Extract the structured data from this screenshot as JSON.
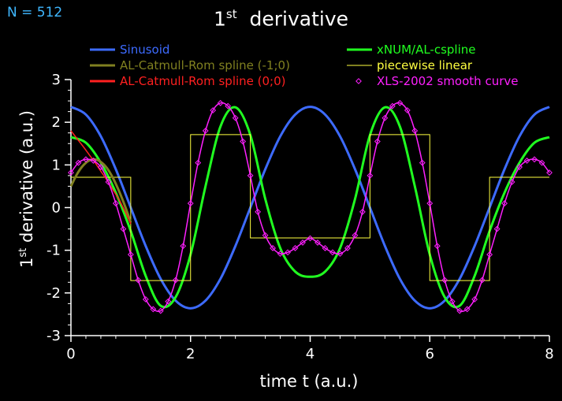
{
  "header": {
    "n_label": "N = 512",
    "title_base": "1",
    "title_sup": "st",
    "title_rest": "derivative"
  },
  "axes": {
    "ylabel_base": "1",
    "ylabel_sup": "st",
    "ylabel_rest": "derivative (a.u.)",
    "xlabel": "time  t  (a.u.)"
  },
  "colors": {
    "background": "#000000",
    "axis": "#ffffff",
    "n_label": "#3fb7ff",
    "sinusoid": "#3d6bff",
    "al_catmull_m1": "#808020",
    "al_catmull_0": "#ff2020",
    "xnum_cspline": "#20ff20",
    "piecewise_linear": "#ffff40",
    "xls_smooth": "#ff20ff"
  },
  "legend": [
    {
      "key": "sinusoid",
      "label": "Sinusoid",
      "color": "#3d6bff",
      "marker": "line"
    },
    {
      "key": "al_catmull_m1",
      "label": "AL-Catmull-Rom spline (-1;0)",
      "color": "#808020",
      "marker": "line"
    },
    {
      "key": "al_catmull_0",
      "label": "AL-Catmull-Rom spline (0;0)",
      "color": "#ff2020",
      "marker": "line"
    },
    {
      "key": "xnum_cspline",
      "label": "xNUM/AL-cspline",
      "color": "#20ff20",
      "marker": "line"
    },
    {
      "key": "piecewise_linear",
      "label": "piecewise linear",
      "color": "#ffff40",
      "marker": "thinline"
    },
    {
      "key": "xls_smooth",
      "label": "XLS-2002 smooth curve",
      "color": "#ff20ff",
      "marker": "diamond"
    }
  ],
  "chart_data": {
    "type": "line",
    "title": "1st derivative",
    "xlabel": "time  t  (a.u.)",
    "ylabel": "1st derivative (a.u.)",
    "xlim": [
      0,
      8
    ],
    "ylim": [
      -3,
      3
    ],
    "x_ticks": [
      0,
      2,
      4,
      6,
      8
    ],
    "y_ticks": [
      -3,
      -2,
      -1,
      0,
      1,
      2,
      3
    ],
    "grid": false,
    "legend_position": "top",
    "series": [
      {
        "name": "Sinusoid",
        "color": "#3d6bff",
        "x": [
          0,
          0.25,
          0.5,
          0.75,
          1,
          1.25,
          1.5,
          1.75,
          2,
          2.25,
          2.5,
          2.75,
          3,
          3.25,
          3.5,
          3.75,
          4,
          4.25,
          4.5,
          4.75,
          5,
          5.25,
          5.5,
          5.75,
          6,
          6.25,
          6.5,
          6.75,
          7,
          7.25,
          7.5,
          7.75,
          8
        ],
        "y": [
          2.36,
          2.18,
          1.67,
          0.9,
          0,
          -0.9,
          -1.67,
          -2.18,
          -2.36,
          -2.18,
          -1.67,
          -0.9,
          0,
          0.9,
          1.67,
          2.18,
          2.36,
          2.18,
          1.67,
          0.9,
          0,
          -0.9,
          -1.67,
          -2.18,
          -2.36,
          -2.18,
          -1.67,
          -0.9,
          0,
          0.9,
          1.67,
          2.18,
          2.36
        ]
      },
      {
        "name": "AL-Catmull-Rom spline (-1;0)",
        "color": "#808020",
        "x": [
          0,
          0.1,
          0.2,
          0.3,
          0.4,
          0.5,
          0.6,
          0.7,
          0.8,
          0.9,
          1
        ],
        "y": [
          0.5,
          0.78,
          0.98,
          1.1,
          1.13,
          1.07,
          0.93,
          0.7,
          0.4,
          0.05,
          -0.35
        ]
      },
      {
        "name": "AL-Catmull-Rom spline (0;0)",
        "color": "#ff2020",
        "x": [
          0,
          0.1,
          0.2,
          0.3,
          0.4,
          0.5,
          0.6,
          0.7,
          0.8,
          0.9,
          1
        ],
        "y": [
          1.8,
          1.62,
          1.44,
          1.25,
          1.06,
          0.85,
          0.65,
          0.42,
          0.2,
          -0.08,
          -0.38
        ]
      },
      {
        "name": "xNUM/AL-cspline",
        "color": "#20ff20",
        "x": [
          0,
          0.25,
          0.5,
          0.75,
          1,
          1.25,
          1.5,
          1.75,
          2,
          2.25,
          2.5,
          2.75,
          3,
          3.25,
          3.5,
          3.75,
          4,
          4.25,
          4.5,
          4.75,
          5,
          5.25,
          5.5,
          5.75,
          6,
          6.25,
          6.5,
          6.75,
          7,
          7.25,
          7.5,
          7.75,
          8
        ],
        "y": [
          1.65,
          1.52,
          1.05,
          0.35,
          -0.55,
          -1.6,
          -2.3,
          -2.1,
          -1.1,
          0.5,
          1.9,
          2.35,
          1.7,
          0.2,
          -0.95,
          -1.5,
          -1.62,
          -1.5,
          -0.95,
          0.2,
          1.7,
          2.35,
          1.9,
          0.5,
          -1.1,
          -2.1,
          -2.3,
          -1.6,
          -0.55,
          0.35,
          1.05,
          1.52,
          1.65
        ]
      },
      {
        "name": "piecewise linear",
        "color": "#ffff40",
        "x": [
          0,
          1,
          1,
          2,
          2,
          3,
          3,
          5,
          5,
          6,
          6,
          7,
          7,
          8
        ],
        "y": [
          0.71,
          0.71,
          -1.71,
          -1.71,
          1.71,
          1.71,
          -0.71,
          -0.71,
          1.71,
          1.71,
          -1.71,
          -1.71,
          0.71,
          0.71
        ]
      },
      {
        "name": "XLS-2002 smooth curve",
        "color": "#ff20ff",
        "x": [
          0,
          0.125,
          0.25,
          0.375,
          0.5,
          0.625,
          0.75,
          0.875,
          1,
          1.125,
          1.25,
          1.375,
          1.5,
          1.625,
          1.75,
          1.875,
          2,
          2.125,
          2.25,
          2.375,
          2.5,
          2.625,
          2.75,
          2.875,
          3,
          3.125,
          3.25,
          3.375,
          3.5,
          3.625,
          3.75,
          3.875,
          4,
          4.125,
          4.25,
          4.375,
          4.5,
          4.625,
          4.75,
          4.875,
          5,
          5.125,
          5.25,
          5.375,
          5.5,
          5.625,
          5.75,
          5.875,
          6,
          6.125,
          6.25,
          6.375,
          6.5,
          6.625,
          6.75,
          6.875,
          7,
          7.125,
          7.25,
          7.375,
          7.5,
          7.625,
          7.75,
          7.875,
          8
        ],
        "y": [
          0.82,
          1.05,
          1.13,
          1.1,
          0.95,
          0.6,
          0.1,
          -0.5,
          -1.1,
          -1.7,
          -2.15,
          -2.38,
          -2.42,
          -2.2,
          -1.7,
          -0.9,
          0.1,
          1.05,
          1.8,
          2.28,
          2.45,
          2.38,
          2.1,
          1.55,
          0.75,
          -0.1,
          -0.65,
          -0.95,
          -1.08,
          -1.05,
          -0.95,
          -0.82,
          -0.72,
          -0.82,
          -0.95,
          -1.05,
          -1.08,
          -0.95,
          -0.65,
          -0.1,
          0.75,
          1.55,
          2.1,
          2.38,
          2.45,
          2.28,
          1.8,
          1.05,
          0.1,
          -0.9,
          -1.7,
          -2.2,
          -2.42,
          -2.38,
          -2.15,
          -1.7,
          -1.1,
          -0.5,
          0.1,
          0.6,
          0.95,
          1.1,
          1.13,
          1.05,
          0.82
        ]
      }
    ]
  }
}
